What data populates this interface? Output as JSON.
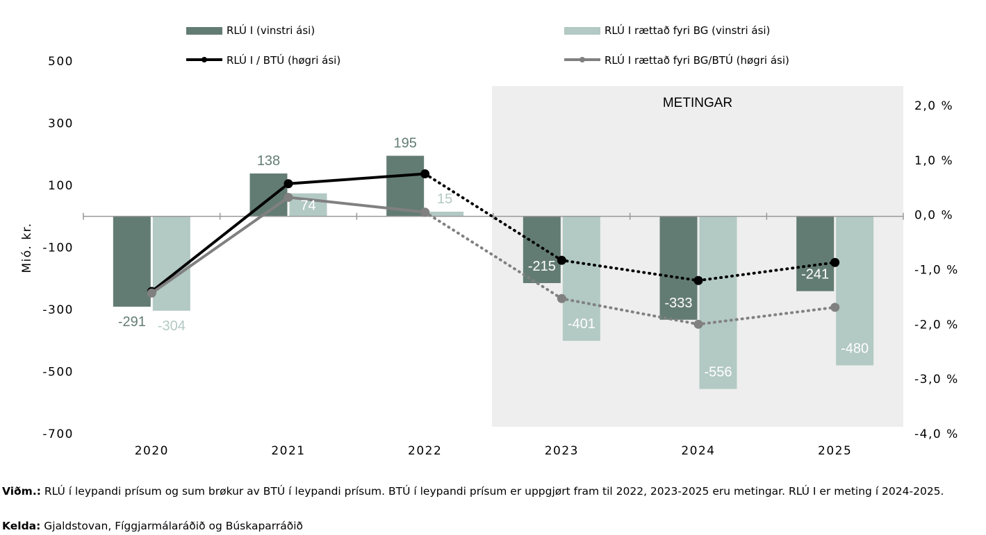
{
  "chart_data": {
    "type": "bar",
    "categories": [
      "2020",
      "2021",
      "2022",
      "2023",
      "2024",
      "2025"
    ],
    "ylabel": "Mió. kr.",
    "ylim": [
      -700,
      500
    ],
    "yticks": [
      "500",
      "300",
      "100",
      "-100",
      "-300",
      "-500",
      "-700"
    ],
    "y2lim": [
      -4.0,
      2.0
    ],
    "y2ticks": [
      "2,0 %",
      "1,0 %",
      "0,0 %",
      "-1,0 %",
      "-2,0 %",
      "-3,0 %",
      "-4,0 %"
    ],
    "forecast_label": "METINGAR",
    "forecast_from": "2023",
    "series": [
      {
        "name": "RLÚ I (vinstri ási)",
        "kind": "bar",
        "axis": "left",
        "color": "#637c73",
        "values": [
          -291,
          138,
          195,
          -215,
          -333,
          -241
        ],
        "labels": [
          "-291",
          "138",
          "195",
          "-215",
          "-333",
          "-241"
        ]
      },
      {
        "name": "RLÚ I rættað fyri BG (vinstri ási)",
        "kind": "bar",
        "axis": "left",
        "color": "#b3c9c3",
        "values": [
          -304,
          74,
          15,
          -401,
          -556,
          -480
        ],
        "labels": [
          "-304",
          "74",
          "15",
          "-401",
          "-556",
          "-480"
        ]
      },
      {
        "name": "RLÚ I / BTÚ (høgri ási)",
        "kind": "line",
        "axis": "right",
        "color": "#000000",
        "values": [
          -1.4,
          0.57,
          0.75,
          -0.83,
          -1.2,
          -0.87
        ]
      },
      {
        "name": "RLÚ I rættað fyri BG/BTÚ (høgri ási)",
        "kind": "line",
        "axis": "right",
        "color": "#808080",
        "values": [
          -1.43,
          0.32,
          0.05,
          -1.53,
          -2.0,
          -1.69
        ]
      }
    ]
  },
  "notes": [
    {
      "label": "Viðm.:",
      "text": " RLÚ í leypandi prísum og sum brøkur av BTÚ í leypandi prísum. BTÚ í leypandi prísum er uppgjørt fram til 2022, 2023-2025 eru metingar. RLÚ I er meting í 2024-2025."
    },
    {
      "label": "Kelda:",
      "text": " Gjaldstovan, Fíggjarmálaráðið og Búskaparráðið"
    }
  ]
}
